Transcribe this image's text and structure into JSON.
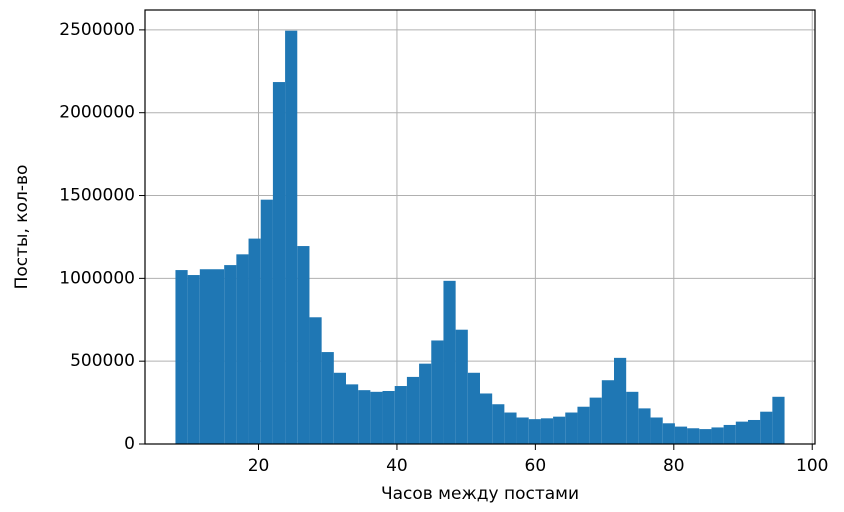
{
  "chart_data": {
    "type": "histogram",
    "x_label": "Часов между постами",
    "y_label": "Посты, кол-во",
    "bins": [
      8,
      9.76,
      11.52,
      13.28,
      15.04,
      16.8,
      18.56,
      20.32,
      22.08,
      23.84,
      25.6,
      27.36,
      29.12,
      30.88,
      32.64,
      34.4,
      36.16,
      37.92,
      39.68,
      41.44,
      43.2,
      44.96,
      46.72,
      48.48,
      50.24,
      52,
      53.76,
      55.52,
      57.28,
      59.04,
      60.8,
      62.56,
      64.32,
      66.08,
      67.84,
      69.6,
      71.36,
      73.12,
      74.88,
      76.64,
      78.4,
      80.16,
      81.92,
      83.68,
      85.44,
      87.2,
      88.96,
      90.72,
      92.48,
      94.24,
      96
    ],
    "counts": [
      1050000,
      1020000,
      1055000,
      1055000,
      1080000,
      1145000,
      1240000,
      1475000,
      2185000,
      2495000,
      1195000,
      765000,
      555000,
      430000,
      360000,
      325000,
      315000,
      320000,
      350000,
      405000,
      485000,
      625000,
      985000,
      690000,
      430000,
      305000,
      240000,
      190000,
      160000,
      150000,
      155000,
      165000,
      190000,
      225000,
      280000,
      385000,
      520000,
      315000,
      215000,
      160000,
      125000,
      105000,
      95000,
      90000,
      100000,
      115000,
      135000,
      145000,
      195000,
      285000
    ],
    "color": "#1f77b4",
    "xlim": [
      3.6,
      100.4
    ],
    "xticks": [
      20,
      40,
      60,
      80,
      100
    ],
    "ylim": [
      0,
      2620000
    ],
    "yticks": [
      0,
      500000,
      1000000,
      1500000,
      2000000,
      2500000
    ],
    "grid": true
  }
}
